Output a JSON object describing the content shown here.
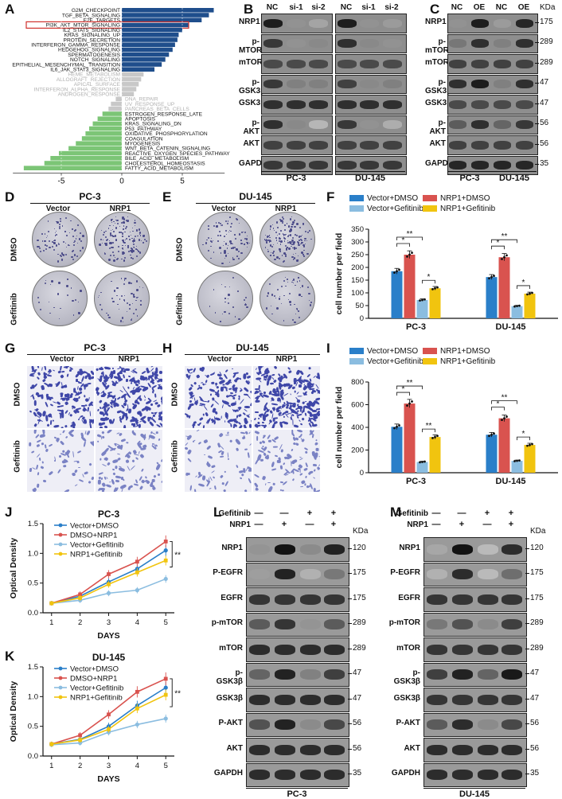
{
  "panels": {
    "A": {
      "label": "A",
      "chart_data": {
        "type": "bar",
        "orientation": "horizontal",
        "categories": [
          "G2M_CHECKPOINT",
          "TGF_BETA_SIGNALING",
          "E2F_TARGETS",
          "PI3K_AKT_MTOR_SIGNALING",
          "IL2_STAT5_SIGNALING",
          "KRAS_SIGNALING_UP",
          "PROTEIN_SECRETION",
          "INTERFERON_GAMMA_RESPONSE",
          "HEDGEHOG_SIGNALING",
          "SPERMATOGENESIS",
          "NOTCH_SIGNALING",
          "EPITHELIAL_MESENCHYMAL_TRANSITION",
          "IL6_JAK_STAT3_SIGNALING",
          "HEME_METABOLISM",
          "ALLOGRAFT_REJECTION",
          "APICAL_SURFACE",
          "INTERFERON_ALPHA_RESPONSE",
          "ANDROGEN_RESPONSE",
          "DNA_REPAIR",
          "UV_RESPONSE_UP",
          "PANCREAS_BETA_CELLS",
          "ESTROGEN_RESPONSE_LATE",
          "APOPTOSIS",
          "KRAS_SIGNALING_DN",
          "P53_PATHWAY",
          "OXIDATIVE_PHOSPHORYLATION",
          "COAGULATION",
          "MYOGENESIS",
          "WNT_BETA_CATENIN_SIGNALING",
          "REACTIVE_OXYGEN_SPECIES_PATHWAY",
          "BILE_ACID_METABOLISM",
          "CHOLESTEROL_HOMEOSTASIS",
          "FATTY_ACID_METABOLISM"
        ],
        "values": [
          7.6,
          7.2,
          6.6,
          5.5,
          5.0,
          4.7,
          4.6,
          4.4,
          4.2,
          3.9,
          3.6,
          3.3,
          2.7,
          1.8,
          1.6,
          1.4,
          1.2,
          1.0,
          -0.5,
          -0.9,
          -1.1,
          -1.6,
          -2.0,
          -2.4,
          -2.7,
          -3.0,
          -3.3,
          -3.8,
          -4.4,
          -5.2,
          -5.9,
          -6.4,
          -8.1
        ],
        "groups": [
          "up",
          "up",
          "up",
          "up",
          "up",
          "up",
          "up",
          "up",
          "up",
          "up",
          "up",
          "up",
          "up",
          "ns",
          "ns",
          "ns",
          "ns",
          "ns",
          "ns",
          "ns",
          "ns",
          "down",
          "down",
          "down",
          "down",
          "down",
          "down",
          "down",
          "down",
          "down",
          "down",
          "down",
          "down"
        ],
        "highlight": "PI3K_AKT_MTOR_SIGNALING",
        "xticks": [
          "-5",
          "0",
          "5"
        ],
        "xlim": [
          -9,
          8.5
        ],
        "colors": {
          "up": "#1f4e8c",
          "ns": "#c8c8c8",
          "down": "#7cc576",
          "highlight": "#d0312d"
        }
      }
    },
    "B": {
      "label": "B",
      "lanes": [
        "NC",
        "si-1",
        "si-2",
        "NC",
        "si-1",
        "si-2"
      ],
      "rows": [
        "NRP1",
        "p-MTOR",
        "mTOR",
        "p-GSK3β",
        "GSK3β",
        "p-AKT",
        "AKT",
        "GAPDH"
      ],
      "cells": [
        "PC-3",
        "DU-145"
      ]
    },
    "C": {
      "label": "C",
      "lanes": [
        "NC",
        "OE",
        "NC",
        "OE"
      ],
      "kda_header": "KDa",
      "rows": [
        {
          "name": "NRP1",
          "kda": "175"
        },
        {
          "name": "p-mTOR",
          "kda": "289"
        },
        {
          "name": "mTOR",
          "kda": "289"
        },
        {
          "name": "p-GSK3β",
          "kda": "47"
        },
        {
          "name": "GSK3β",
          "kda": "47"
        },
        {
          "name": "p-AKT",
          "kda": "56"
        },
        {
          "name": "AKT",
          "kda": "56"
        },
        {
          "name": "GAPDH",
          "kda": "35"
        }
      ],
      "cells": [
        "PC-3",
        "DU-145"
      ]
    },
    "D": {
      "label": "D",
      "title": "PC-3",
      "cols": [
        "Vector",
        "NRP1"
      ],
      "rows": [
        "DMSO",
        "Gefitinib"
      ]
    },
    "E": {
      "label": "E",
      "title": "DU-145",
      "cols": [
        "Vector",
        "NRP1"
      ],
      "rows": [
        "DMSO",
        "Gefitinib"
      ]
    },
    "F": {
      "label": "F",
      "chart_data": {
        "type": "bar",
        "categories": [
          "PC-3",
          "DU-145"
        ],
        "series": [
          {
            "name": "Vector+DMSO",
            "values": [
              185,
              162
            ],
            "color": "#2a7fc9"
          },
          {
            "name": "NRP1+DMSO",
            "values": [
              250,
              240
            ],
            "color": "#d9534f"
          },
          {
            "name": "Vector+Gefitinib",
            "values": [
              72,
              48
            ],
            "color": "#8bbde0"
          },
          {
            "name": "NRP1+Gefitinib",
            "values": [
              118,
              97
            ],
            "color": "#f1c40f"
          }
        ],
        "ylabel": "cell number per field",
        "ylim": [
          0,
          350
        ],
        "yticks": [
          "0",
          "50",
          "100",
          "150",
          "200",
          "250",
          "300",
          "350"
        ],
        "significance": [
          "*",
          "**",
          "*",
          "*",
          "**",
          "*"
        ]
      }
    },
    "G": {
      "label": "G",
      "title": "PC-3",
      "cols": [
        "Vector",
        "NRP1"
      ],
      "rows": [
        "DMSO",
        "Gefitinib"
      ]
    },
    "H": {
      "label": "H",
      "title": "DU-145",
      "cols": [
        "Vector",
        "NRP1"
      ],
      "rows": [
        "DMSO",
        "Gefitinib"
      ]
    },
    "I": {
      "label": "I",
      "chart_data": {
        "type": "bar",
        "categories": [
          "PC-3",
          "DU-145"
        ],
        "series": [
          {
            "name": "Vector+DMSO",
            "values": [
              405,
              335
            ],
            "color": "#2a7fc9"
          },
          {
            "name": "NRP1+DMSO",
            "values": [
              610,
              480
            ],
            "color": "#d9534f"
          },
          {
            "name": "Vector+Gefitinib",
            "values": [
              95,
              105
            ],
            "color": "#8bbde0"
          },
          {
            "name": "NRP1+Gefitinib",
            "values": [
              315,
              245
            ],
            "color": "#f1c40f"
          }
        ],
        "ylabel": "cell number per field",
        "ylim": [
          0,
          800
        ],
        "yticks": [
          "0",
          "200",
          "400",
          "600",
          "800"
        ],
        "significance": [
          "*",
          "**",
          "**",
          "*",
          "**",
          "*"
        ]
      }
    },
    "J": {
      "label": "J",
      "chart_data": {
        "type": "line",
        "title": "PC-3",
        "x": [
          1,
          2,
          3,
          4,
          5
        ],
        "xlabel": "DAYS",
        "ylabel": "Optical Density",
        "ylim": [
          0,
          1.5
        ],
        "yticks": [
          "0.0",
          "0.5",
          "1.0",
          "1.5"
        ],
        "series": [
          {
            "name": "Vector+DMSO",
            "values": [
              0.16,
              0.28,
              0.52,
              0.74,
              1.05
            ],
            "color": "#2a7fc9"
          },
          {
            "name": "DMSO+NRP1",
            "values": [
              0.16,
              0.31,
              0.65,
              0.86,
              1.2
            ],
            "color": "#d9534f"
          },
          {
            "name": "Vector+Gefitinib",
            "values": [
              0.16,
              0.21,
              0.33,
              0.38,
              0.57
            ],
            "color": "#8bbde0"
          },
          {
            "name": "NRP1+Gefitinib",
            "values": [
              0.16,
              0.25,
              0.48,
              0.68,
              0.88
            ],
            "color": "#f1c40f"
          }
        ],
        "annotation": "**"
      }
    },
    "K": {
      "label": "K",
      "chart_data": {
        "type": "line",
        "title": "DU-145",
        "x": [
          1,
          2,
          3,
          4,
          5
        ],
        "xlabel": "DAYS",
        "ylabel": "Optical Density",
        "ylim": [
          0,
          1.5
        ],
        "yticks": [
          "0.0",
          "0.5",
          "1.0",
          "1.5"
        ],
        "series": [
          {
            "name": "Vector+DMSO",
            "values": [
              0.2,
              0.28,
              0.5,
              0.85,
              1.15
            ],
            "color": "#2a7fc9"
          },
          {
            "name": "DMSO+NRP1",
            "values": [
              0.2,
              0.35,
              0.7,
              1.08,
              1.3
            ],
            "color": "#d9534f"
          },
          {
            "name": "Vector+Gefitinib",
            "values": [
              0.19,
              0.22,
              0.4,
              0.53,
              0.63
            ],
            "color": "#8bbde0"
          },
          {
            "name": "NRP1+Gefitinib",
            "values": [
              0.2,
              0.27,
              0.45,
              0.8,
              1.03
            ],
            "color": "#f1c40f"
          }
        ],
        "annotation": "**"
      }
    },
    "L": {
      "label": "L",
      "gef_label": "Gefitinib",
      "nrp_label": "NRP1",
      "gef": [
        "—",
        "—",
        "+",
        "+"
      ],
      "nrp": [
        "—",
        "+",
        "—",
        "+"
      ],
      "kda_header": "KDa",
      "rows": [
        {
          "name": "NRP1",
          "kda": "120"
        },
        {
          "name": "P-EGFR",
          "kda": "175"
        },
        {
          "name": "EGFR",
          "kda": "175"
        },
        {
          "name": "p-mTOR",
          "kda": "289"
        },
        {
          "name": "mTOR",
          "kda": "289"
        },
        {
          "name": "p-GSK3β",
          "kda": "47"
        },
        {
          "name": "GSK3β",
          "kda": "47"
        },
        {
          "name": "P-AKT",
          "kda": "56"
        },
        {
          "name": "AKT",
          "kda": "56"
        },
        {
          "name": "GAPDH",
          "kda": "35"
        }
      ],
      "cell": "PC-3"
    },
    "M": {
      "label": "M",
      "gef_label": "Gefitinib",
      "nrp_label": "NRP1",
      "gef": [
        "—",
        "—",
        "+",
        "+"
      ],
      "nrp": [
        "—",
        "+",
        "—",
        "+"
      ],
      "kda_header": "KDa",
      "rows": [
        {
          "name": "NRP1",
          "kda": "120"
        },
        {
          "name": "P-EGFR",
          "kda": "175"
        },
        {
          "name": "EGFR",
          "kda": "175"
        },
        {
          "name": "p-mTOR",
          "kda": "289"
        },
        {
          "name": "mTOR",
          "kda": "289"
        },
        {
          "name": "p-GSK3β",
          "kda": "47"
        },
        {
          "name": "GSK3β",
          "kda": "47"
        },
        {
          "name": "P-AKT",
          "kda": "56"
        },
        {
          "name": "AKT",
          "kda": "56"
        },
        {
          "name": "GAPDH",
          "kda": "35"
        }
      ],
      "cell": "DU-145"
    }
  }
}
